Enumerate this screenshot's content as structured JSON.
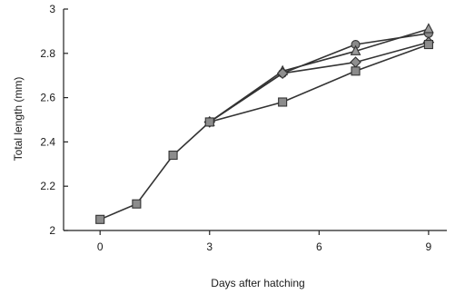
{
  "chart_data": {
    "type": "line",
    "title": "",
    "xlabel": "Days after hatching",
    "ylabel": "Total length (mm)",
    "xlim": [
      -1,
      9.5
    ],
    "ylim": [
      2,
      3
    ],
    "xticks": [
      0,
      3,
      6,
      9
    ],
    "xtick_labels": [
      "0",
      "3",
      "6",
      "9"
    ],
    "yticks": [
      2,
      2.2,
      2.4,
      2.6,
      2.8,
      3
    ],
    "ytick_labels": [
      "2",
      "2.2",
      "2.4",
      "2.6",
      "2.8",
      "3"
    ],
    "grid": false,
    "legend": "none",
    "series": [
      {
        "marker": "circle",
        "color": "#8a8a8a",
        "x": [
          3,
          5,
          7,
          9
        ],
        "y": [
          2.49,
          2.71,
          2.84,
          2.89
        ]
      },
      {
        "marker": "triangle",
        "color": "#9a9a9a",
        "x": [
          3,
          5,
          7,
          9
        ],
        "y": [
          2.49,
          2.72,
          2.81,
          2.91
        ]
      },
      {
        "marker": "diamond",
        "color": "#8f8f8f",
        "x": [
          3,
          5,
          7,
          9
        ],
        "y": [
          2.49,
          2.71,
          2.76,
          2.85
        ]
      },
      {
        "marker": "square",
        "color": "#8c8c8c",
        "x": [
          0,
          1,
          2,
          3,
          5,
          7,
          9
        ],
        "y": [
          2.05,
          2.12,
          2.34,
          2.49,
          2.58,
          2.72,
          2.84
        ]
      }
    ]
  }
}
